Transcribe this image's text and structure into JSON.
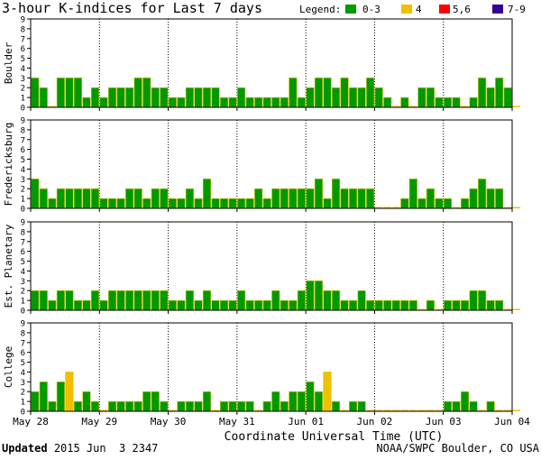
{
  "title": "3-hour K-indices for Last 7 days",
  "legend": {
    "label": "Legend:",
    "items": [
      {
        "label": "0-3",
        "color": "#009900"
      },
      {
        "label": "4",
        "color": "#f0c000"
      },
      {
        "label": "5,6",
        "color": "#ff0000"
      },
      {
        "label": "7-9",
        "color": "#330099"
      }
    ]
  },
  "xlabel": "Coordinate Universal Time (UTC)",
  "footer": {
    "updated_label": "Updated",
    "updated_value": "2015 Jun  3 2347",
    "source": "NOAA/SWPC Boulder, CO USA"
  },
  "chart_data": [
    {
      "type": "bar",
      "ylabel": "Boulder",
      "ylim": [
        0,
        9
      ],
      "yticks": [
        "0",
        "1",
        "2",
        "3",
        "4",
        "5",
        "6",
        "7",
        "8",
        "9"
      ],
      "x_tick_labels": [
        "May 28",
        "May 29",
        "May 30",
        "May 31",
        "Jun 01",
        "Jun 02",
        "Jun 03",
        "Jun 04"
      ],
      "values": [
        3,
        2,
        0,
        3,
        3,
        3,
        1,
        2,
        1,
        2,
        2,
        2,
        3,
        3,
        2,
        2,
        1,
        1,
        2,
        2,
        2,
        2,
        1,
        1,
        2,
        1,
        1,
        1,
        1,
        1,
        3,
        1,
        2,
        3,
        3,
        2,
        3,
        2,
        2,
        3,
        2,
        1,
        0,
        1,
        0,
        2,
        2,
        1,
        1,
        1,
        0,
        1,
        3,
        2,
        3,
        2,
        0
      ]
    },
    {
      "type": "bar",
      "ylabel": "Fredericksburg",
      "ylim": [
        0,
        9
      ],
      "yticks": [
        "0",
        "1",
        "2",
        "3",
        "4",
        "5",
        "6",
        "7",
        "8",
        "9"
      ],
      "x_tick_labels": [
        "May 28",
        "May 29",
        "May 30",
        "May 31",
        "Jun 01",
        "Jun 02",
        "Jun 03",
        "Jun 04"
      ],
      "values": [
        3,
        2,
        1,
        2,
        2,
        2,
        2,
        2,
        1,
        1,
        1,
        2,
        2,
        1,
        2,
        2,
        1,
        1,
        2,
        1,
        3,
        1,
        1,
        1,
        1,
        1,
        2,
        1,
        2,
        2,
        2,
        2,
        2,
        3,
        1,
        3,
        2,
        2,
        2,
        2,
        0,
        0,
        0,
        1,
        3,
        1,
        2,
        1,
        1,
        0,
        1,
        2,
        3,
        2,
        2,
        0,
        0
      ]
    },
    {
      "type": "bar",
      "ylabel": "Est. Planetary",
      "ylim": [
        0,
        9
      ],
      "yticks": [
        "0",
        "1",
        "2",
        "3",
        "4",
        "5",
        "6",
        "7",
        "8",
        "9"
      ],
      "x_tick_labels": [
        "May 28",
        "May 29",
        "May 30",
        "May 31",
        "Jun 01",
        "Jun 02",
        "Jun 03",
        "Jun 04"
      ],
      "values": [
        2,
        2,
        1,
        2,
        2,
        1,
        1,
        2,
        1,
        2,
        2,
        2,
        2,
        2,
        2,
        2,
        1,
        1,
        2,
        1,
        2,
        1,
        1,
        1,
        2,
        1,
        1,
        1,
        2,
        1,
        1,
        2,
        3,
        3,
        2,
        2,
        1,
        1,
        2,
        1,
        1,
        1,
        1,
        1,
        1,
        0,
        1,
        0,
        1,
        1,
        1,
        2,
        2,
        1,
        1,
        0,
        0
      ]
    },
    {
      "type": "bar",
      "ylabel": "College",
      "ylim": [
        0,
        9
      ],
      "yticks": [
        "0",
        "1",
        "2",
        "3",
        "4",
        "5",
        "6",
        "7",
        "8",
        "9"
      ],
      "x_tick_labels": [
        "May 28",
        "May 29",
        "May 30",
        "May 31",
        "Jun 01",
        "Jun 02",
        "Jun 03",
        "Jun 04"
      ],
      "values": [
        2,
        3,
        1,
        3,
        4,
        1,
        2,
        1,
        0,
        1,
        1,
        1,
        1,
        2,
        2,
        1,
        0,
        1,
        1,
        1,
        2,
        0,
        1,
        1,
        1,
        1,
        0,
        1,
        2,
        1,
        2,
        2,
        3,
        2,
        4,
        1,
        0,
        1,
        1,
        0,
        0,
        0,
        0,
        0,
        0,
        0,
        0,
        0,
        1,
        1,
        2,
        1,
        0,
        1,
        0,
        0,
        0
      ]
    }
  ]
}
